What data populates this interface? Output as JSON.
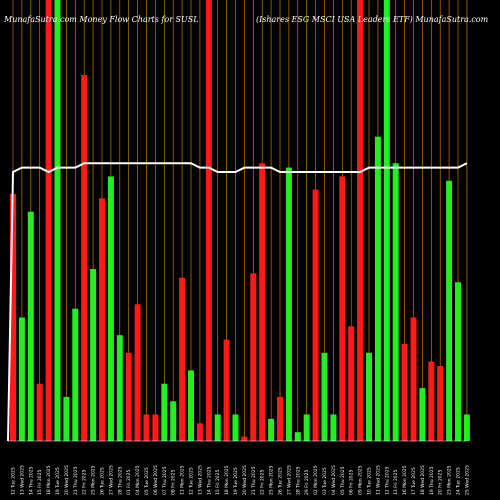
{
  "header": {
    "left_title": "MunafaSutra.com Money Flow  Charts for SUSL",
    "right_title": "(Ishares ESG MSCI USA Leaders ETF) MunafaSutra.com"
  },
  "colors": {
    "background": "#000000",
    "up_bar": "#22ee22",
    "down_bar": "#ff1a1a",
    "gridline": "#c87800",
    "price_line": "#ffffff"
  },
  "chart_data": {
    "type": "bar",
    "title": "MunafaSutra.com Money Flow  Charts for SUSL",
    "subtitle": "(Ishares ESG MSCI USA Leaders ETF) MunafaSutra.com",
    "ylim": [
      0,
      100
    ],
    "grid": true,
    "categories": [
      "12 Tue 2025",
      "13 Wed 2025",
      "14 Thu 2025",
      "15 Fri 2025",
      "18 Mon 2025",
      "19 Tue 2025",
      "20 Wed 2025",
      "21 Thu 2025",
      "22 Fri 2025",
      "25 Mon 2025",
      "26 Tue 2025",
      "27 Wed 2025",
      "28 Thu 2025",
      "01 Fri 2025",
      "04 Mon 2025",
      "05 Tue 2025",
      "06 Wed 2025",
      "07 Thu 2025",
      "08 Fri 2025",
      "11 Mon 2025",
      "12 Tue 2025",
      "13 Wed 2025",
      "14 Thu 2025",
      "15 Fri 2025",
      "18 Mon 2025",
      "19 Tue 2025",
      "20 Wed 2025",
      "21 Thu 2025",
      "22 Fri 2025",
      "25 Mon 2025",
      "26 Tue 2025",
      "27 Wed 2025",
      "28 Thu 2025",
      "29 Fri 2025",
      "02 Mon 2025",
      "03 Tue 2025",
      "04 Wed 2025",
      "05 Thu 2025",
      "06 Fri 2025",
      "09 Mon 2025",
      "10 Tue 2025",
      "11 Wed 2025",
      "12 Thu 2025",
      "13 Fri 2025",
      "16 Mon 2025",
      "17 Tue 2025",
      "18 Wed 2025",
      "19 Thu 2025",
      "20 Fri 2025",
      "23 Mon 2025",
      "24 Tue 2025",
      "25 Wed 2025"
    ],
    "series": [
      {
        "values": [
          56,
          28,
          52,
          13,
          100,
          100,
          10,
          30,
          83,
          39,
          55,
          60,
          24,
          20,
          31,
          6,
          6,
          13,
          9,
          37,
          16,
          4,
          100,
          6,
          23,
          6,
          1,
          38,
          63,
          5,
          10,
          62,
          2,
          6,
          57,
          20,
          6,
          60,
          26,
          100,
          20,
          69,
          100,
          63,
          22,
          28,
          12,
          18,
          17,
          59,
          36,
          6
        ],
        "direction": [
          "down",
          "up",
          "up",
          "down",
          "down",
          "up",
          "up",
          "up",
          "down",
          "up",
          "down",
          "up",
          "up",
          "down",
          "down",
          "down",
          "down",
          "up",
          "up",
          "down",
          "up",
          "down",
          "down",
          "up",
          "down",
          "up",
          "down",
          "down",
          "down",
          "up",
          "down",
          "up",
          "up",
          "up",
          "down",
          "up",
          "up",
          "down",
          "down",
          "down",
          "up",
          "up",
          "up",
          "up",
          "down",
          "down",
          "up",
          "down",
          "down",
          "up",
          "up",
          "up"
        ]
      },
      {
        "price": [
          61,
          62,
          62,
          62,
          61,
          62,
          62,
          62,
          63,
          63,
          63,
          63,
          63,
          63,
          63,
          63,
          63,
          63,
          63,
          63,
          63,
          62,
          62,
          61,
          61,
          61,
          62,
          62,
          62,
          62,
          61,
          61,
          61,
          61,
          61,
          61,
          61,
          61,
          61,
          61,
          62,
          62,
          62,
          62,
          62,
          62,
          62,
          62,
          62,
          62,
          62,
          63
        ]
      }
    ]
  }
}
